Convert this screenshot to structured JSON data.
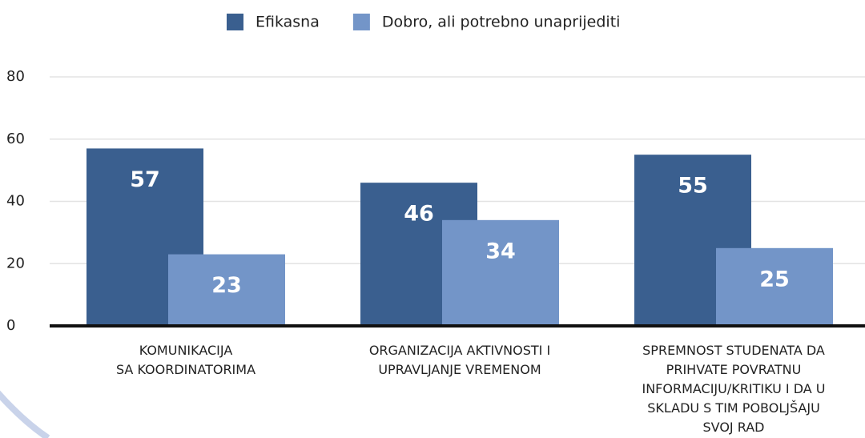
{
  "chart_data": {
    "type": "bar",
    "categories": [
      "KOMUNIKACIJA\nSA KOORDINATORIMA",
      "ORGANIZACIJA AKTIVNOSTI I\nUPRAVLJANJE VREMENOM",
      "SPREMNOST STUDENATA DA\nPRIHVATE POVRATNU\nINFORMACIJU/KRITIKU I DA U\nSKLADU S TIM POBOLJŠAJU\nSVOJ RAD"
    ],
    "series": [
      {
        "name": "Efikasna",
        "color": "#3a5f8f",
        "values": [
          57,
          46,
          55
        ]
      },
      {
        "name": "Dobro, ali potrebno unaprijediti",
        "color": "#7395c8",
        "values": [
          23,
          34,
          25
        ]
      }
    ],
    "ylim": [
      0,
      80
    ],
    "yticks": [
      0,
      20,
      40,
      60,
      80
    ],
    "grid": true,
    "legend": "top"
  }
}
